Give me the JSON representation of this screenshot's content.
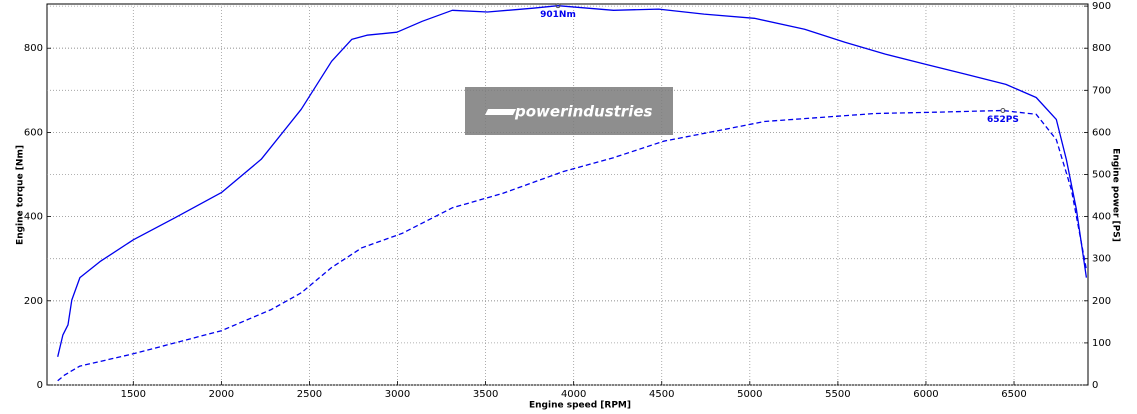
{
  "chart_data": {
    "type": "line",
    "xlabel": "Engine speed [RPM]",
    "ylabel": "Engine torque [Nm]",
    "y2label": "Engine power [PS]",
    "watermark": "powerindustries",
    "xlim": [
      1010,
      6920
    ],
    "xticks": [
      1500,
      2000,
      2500,
      3000,
      3500,
      4000,
      4500,
      5000,
      5500,
      6000,
      6500
    ],
    "ylim": [
      0,
      905
    ],
    "yticks": [
      0,
      200,
      400,
      600,
      800
    ],
    "y2lim": [
      0,
      905
    ],
    "y2ticks": [
      0,
      100,
      200,
      300,
      400,
      500,
      600,
      700,
      800,
      900
    ],
    "grid": true,
    "series": [
      {
        "color": "#0000ee",
        "linestyle": "solid",
        "x": [
          1071,
          1100,
          1129,
          1151,
          1197,
          1311,
          1500,
          1740,
          2000,
          2226,
          2454,
          2626,
          2740,
          2826,
          2997,
          3140,
          3311,
          3511,
          3769,
          3911,
          4226,
          4483,
          4740,
          5026,
          5311,
          5540,
          5769,
          5997,
          6226,
          6454,
          6626,
          6740,
          6797,
          6854,
          6911
        ],
        "values": [
          67,
          119,
          143,
          202,
          255,
          293,
          345,
          398,
          457,
          536,
          655,
          769,
          821,
          831,
          838,
          864,
          890,
          886,
          895,
          901,
          890,
          893,
          881,
          871,
          845,
          814,
          786,
          762,
          738,
          714,
          683,
          631,
          536,
          417,
          255
        ]
      },
      {
        "color": "#0000ee",
        "linestyle": "dashed",
        "axis": "y2",
        "x": [
          1071,
          1111,
          1197,
          1500,
          2000,
          2283,
          2454,
          2626,
          2797,
          3026,
          3311,
          3597,
          3940,
          4226,
          4511,
          4854,
          5083,
          5483,
          5711,
          6054,
          6437,
          6626,
          6740,
          6826,
          6911
        ],
        "values": [
          10,
          24,
          45,
          74,
          129,
          179,
          219,
          279,
          326,
          360,
          421,
          455,
          507,
          540,
          579,
          607,
          626,
          638,
          645,
          648,
          652,
          643,
          583,
          464,
          274
        ]
      }
    ],
    "annotations": [
      {
        "text": "901Nm",
        "x": 3911,
        "y": 901
      },
      {
        "text": "652PS",
        "x": 6437,
        "y": 652
      }
    ]
  }
}
